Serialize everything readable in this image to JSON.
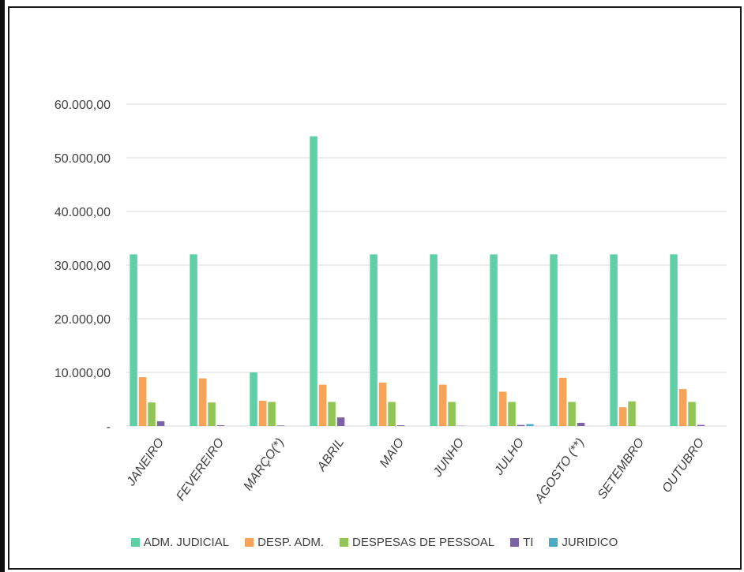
{
  "chart_data": {
    "type": "bar",
    "categories": [
      "JANEIRO",
      "FEVEREIRO",
      "MARÇO(*)",
      "ABRIL",
      "MAIO",
      "JUNHO",
      "JULHO",
      "AGOSTO (**)",
      "SETEMBRO",
      "OUTUBRO"
    ],
    "series": [
      {
        "name": "ADM. JUDICIAL",
        "color": "#5fcfa5",
        "values": [
          32000,
          32000,
          10000,
          54000,
          32000,
          32000,
          32000,
          32000,
          32000,
          32000
        ]
      },
      {
        "name": "DESP. ADM.",
        "color": "#f5a45a",
        "values": [
          9100,
          8900,
          4700,
          7700,
          8100,
          7700,
          6400,
          9000,
          3500,
          6900
        ]
      },
      {
        "name": "DESPESAS DE PESSOAL",
        "color": "#92c556",
        "values": [
          4400,
          4400,
          4500,
          4500,
          4500,
          4500,
          4500,
          4500,
          4600,
          4500
        ]
      },
      {
        "name": "TI",
        "color": "#7b63a6",
        "values": [
          900,
          150,
          100,
          1600,
          150,
          50,
          200,
          600,
          0,
          200
        ]
      },
      {
        "name": "JURIDICO",
        "color": "#4bacc6",
        "values": [
          0,
          0,
          0,
          0,
          0,
          0,
          350,
          0,
          0,
          0
        ]
      }
    ],
    "ylim": [
      0,
      60000
    ],
    "yticks": [
      {
        "value": 0,
        "label": "-"
      },
      {
        "value": 10000,
        "label": "10.000,00"
      },
      {
        "value": 20000,
        "label": "20.000,00"
      },
      {
        "value": 30000,
        "label": "30.000,00"
      },
      {
        "value": 40000,
        "label": "40.000,00"
      },
      {
        "value": 50000,
        "label": "50.000,00"
      },
      {
        "value": 60000,
        "label": "60.000,00"
      }
    ],
    "grid": true,
    "legend_position": "bottom",
    "title": "",
    "xlabel": "",
    "ylabel": ""
  }
}
